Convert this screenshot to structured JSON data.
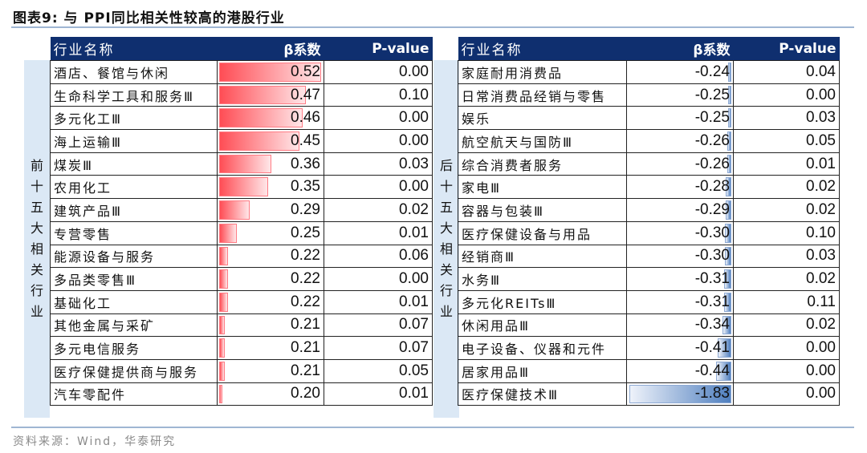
{
  "title": "图表9:  与 PPI同比相关性较高的港股行业",
  "source": "资料来源：Wind，华泰研究",
  "headers": {
    "name": "行业名称",
    "beta": "β系数",
    "pvalue": "P-value"
  },
  "colors": {
    "header_bg": "#0f2f6f",
    "positive_bar": "#ff4d55",
    "negative_bar": "#4f7fbf",
    "side_bg": "#dbe8f5"
  },
  "left": {
    "label": "前十五大相关行业",
    "rows": [
      {
        "name": "酒店、餐馆与休闲",
        "beta": "0.52",
        "p": "0.00"
      },
      {
        "name": "生命科学工具和服务Ⅲ",
        "beta": "0.47",
        "p": "0.10"
      },
      {
        "name": "多元化工Ⅲ",
        "beta": "0.46",
        "p": "0.00"
      },
      {
        "name": "海上运输Ⅲ",
        "beta": "0.45",
        "p": "0.00"
      },
      {
        "name": "煤炭Ⅲ",
        "beta": "0.36",
        "p": "0.03"
      },
      {
        "name": "农用化工",
        "beta": "0.35",
        "p": "0.00"
      },
      {
        "name": "建筑产品Ⅲ",
        "beta": "0.29",
        "p": "0.02"
      },
      {
        "name": "专营零售",
        "beta": "0.25",
        "p": "0.01"
      },
      {
        "name": "能源设备与服务",
        "beta": "0.22",
        "p": "0.06"
      },
      {
        "name": "多品类零售Ⅲ",
        "beta": "0.22",
        "p": "0.00"
      },
      {
        "name": "基础化工",
        "beta": "0.22",
        "p": "0.01"
      },
      {
        "name": "其他金属与采矿",
        "beta": "0.21",
        "p": "0.07"
      },
      {
        "name": "多元电信服务",
        "beta": "0.21",
        "p": "0.07"
      },
      {
        "name": "医疗保健提供商与服务",
        "beta": "0.21",
        "p": "0.05"
      },
      {
        "name": "汽车零配件",
        "beta": "0.20",
        "p": "0.01"
      }
    ]
  },
  "right": {
    "label": "后十五大相关行业",
    "rows": [
      {
        "name": "家庭耐用消费品",
        "beta": "-0.24",
        "p": "0.04"
      },
      {
        "name": "日常消费品经销与零售",
        "beta": "-0.25",
        "p": "0.00"
      },
      {
        "name": "娱乐",
        "beta": "-0.25",
        "p": "0.03"
      },
      {
        "name": "航空航天与国防Ⅲ",
        "beta": "-0.26",
        "p": "0.05"
      },
      {
        "name": "综合消费者服务",
        "beta": "-0.26",
        "p": "0.01"
      },
      {
        "name": "家电Ⅲ",
        "beta": "-0.28",
        "p": "0.02"
      },
      {
        "name": "容器与包装Ⅲ",
        "beta": "-0.29",
        "p": "0.02"
      },
      {
        "name": "医疗保健设备与用品",
        "beta": "-0.30",
        "p": "0.10"
      },
      {
        "name": "经销商Ⅲ",
        "beta": "-0.30",
        "p": "0.03"
      },
      {
        "name": "水务Ⅲ",
        "beta": "-0.31",
        "p": "0.02"
      },
      {
        "name": "多元化REITsⅢ",
        "beta": "-0.31",
        "p": "0.11"
      },
      {
        "name": "休闲用品Ⅲ",
        "beta": "-0.34",
        "p": "0.02"
      },
      {
        "name": "电子设备、仪器和元件",
        "beta": "-0.41",
        "p": "0.00"
      },
      {
        "name": "居家用品Ⅲ",
        "beta": "-0.44",
        "p": "0.00"
      },
      {
        "name": "医疗保健技术Ⅲ",
        "beta": "-1.83",
        "p": "0.00"
      }
    ]
  }
}
